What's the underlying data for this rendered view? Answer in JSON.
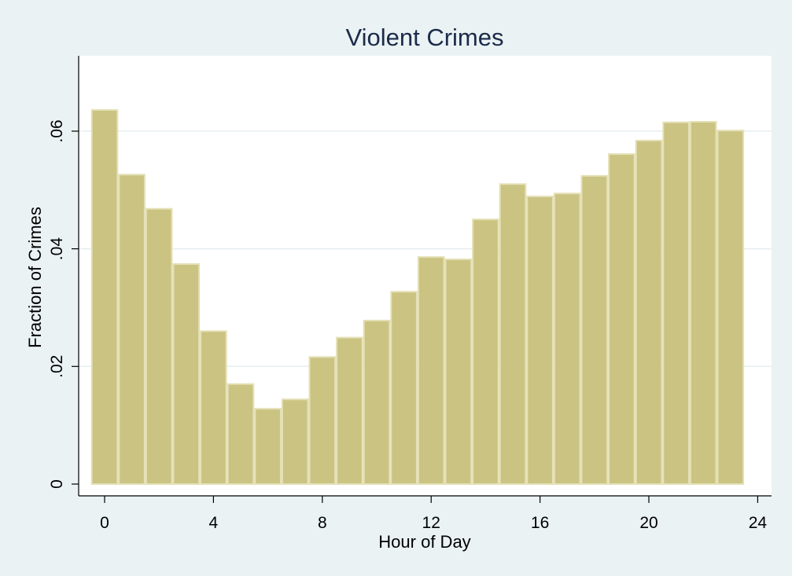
{
  "chart_data": {
    "type": "bar",
    "title": "Violent Crimes",
    "xlabel": "Hour of Day",
    "ylabel": "Fraction of Crimes",
    "categories": [
      0,
      1,
      2,
      3,
      4,
      5,
      6,
      7,
      8,
      9,
      10,
      11,
      12,
      13,
      14,
      15,
      16,
      17,
      18,
      19,
      20,
      21,
      22,
      23
    ],
    "values": [
      0.0636,
      0.0526,
      0.0468,
      0.0374,
      0.026,
      0.017,
      0.0128,
      0.0144,
      0.0216,
      0.0249,
      0.0278,
      0.0327,
      0.0386,
      0.0382,
      0.045,
      0.051,
      0.0489,
      0.0494,
      0.0524,
      0.0561,
      0.0584,
      0.0615,
      0.0616,
      0.0601
    ],
    "xlim": [
      -0.5,
      24
    ],
    "ylim": [
      0,
      0.066
    ],
    "xticks": [
      0,
      4,
      8,
      12,
      16,
      20,
      24
    ],
    "xtick_labels": [
      "0",
      "4",
      "8",
      "12",
      "16",
      "20",
      "24"
    ],
    "yticks": [
      0,
      0.02,
      0.04,
      0.06
    ],
    "ytick_labels": [
      "0",
      ".02",
      ".04",
      ".06"
    ],
    "grid": true,
    "colors": {
      "bar_fill": "#cbc382",
      "bar_edge": "#e4e0b6",
      "plot_background": "#ffffff",
      "outer_background": "#eaf2f3",
      "title": "#1a2b4a"
    }
  }
}
